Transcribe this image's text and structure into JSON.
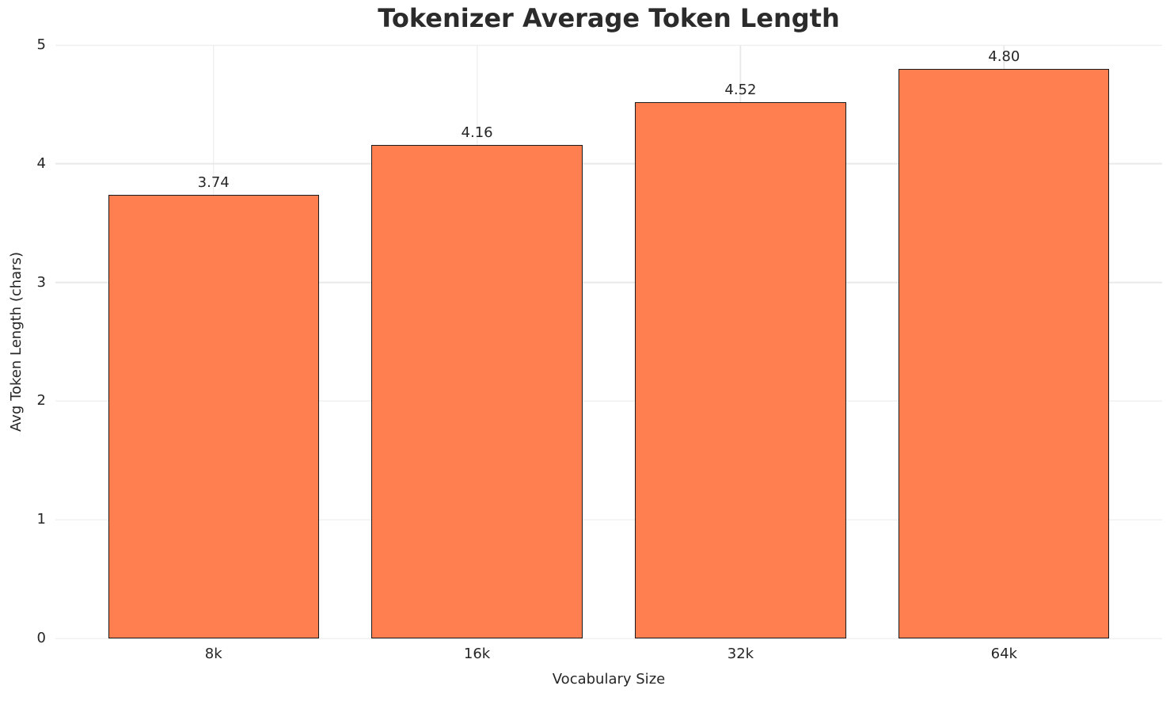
{
  "chart_data": {
    "type": "bar",
    "title": "Tokenizer Average Token Length",
    "xlabel": "Vocabulary Size",
    "ylabel": "Avg Token Length (chars)",
    "categories": [
      "8k",
      "16k",
      "32k",
      "64k"
    ],
    "values": [
      3.74,
      4.16,
      4.52,
      4.8
    ],
    "value_labels": [
      "3.74",
      "4.16",
      "4.52",
      "4.80"
    ],
    "ylim": [
      0,
      5
    ],
    "yticks": [
      0,
      1,
      2,
      3,
      4,
      5
    ],
    "bar_color": "#ff7f50",
    "bar_edge_color": "#1a1a1a",
    "grid_color": "#e9e9e9",
    "text_color": "#262626",
    "title_color": "#2b2b2b",
    "background_color": "#ffffff",
    "legend": "none",
    "grid": "on"
  }
}
